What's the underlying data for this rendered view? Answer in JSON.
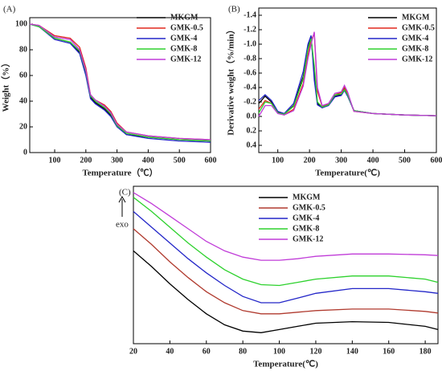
{
  "chart_data": [
    {
      "type": "line",
      "title": "(A)",
      "x_label": "Temperature（℃）",
      "y_label": "Weight（%）",
      "x": [
        20,
        50,
        100,
        150,
        180,
        200,
        215,
        230,
        260,
        280,
        300,
        330,
        400,
        500,
        600
      ],
      "series": [
        {
          "name": "MKGM",
          "color": "#000000",
          "values": [
            100,
            98,
            89,
            86,
            78,
            62,
            43,
            39,
            34,
            29,
            21,
            14,
            12,
            10,
            9
          ]
        },
        {
          "name": "GMK-0.5",
          "color": "#e0291e",
          "values": [
            100,
            99,
            91,
            89,
            82,
            66,
            45,
            41,
            37,
            32,
            23,
            16,
            13,
            11,
            10
          ]
        },
        {
          "name": "GMK-4",
          "color": "#2326c8",
          "values": [
            100,
            98,
            88,
            85,
            77,
            60,
            42,
            38,
            33,
            28,
            20,
            14,
            11,
            9,
            8
          ]
        },
        {
          "name": "GMK-8",
          "color": "#2dd12d",
          "values": [
            100,
            98,
            89,
            86,
            79,
            63,
            44,
            40,
            35,
            30,
            21,
            15,
            12,
            10,
            9
          ]
        },
        {
          "name": "GMK-12",
          "color": "#c03cd8",
          "values": [
            100,
            99,
            90,
            88,
            80,
            64,
            45,
            41,
            36,
            31,
            22,
            16,
            13,
            11,
            10
          ]
        }
      ],
      "xlim": [
        20,
        600
      ],
      "xticks": [
        100,
        200,
        300,
        400,
        500,
        600
      ],
      "ylim": [
        0,
        105
      ],
      "yticks": [
        0,
        20,
        40,
        60,
        80,
        100
      ],
      "legend": "upper right"
    },
    {
      "type": "line",
      "title": "(B)",
      "x_label": "Temperature(℃)",
      "y_label": "Derivative weight（%/min）",
      "x": [
        40,
        60,
        80,
        100,
        120,
        150,
        180,
        195,
        205,
        215,
        225,
        240,
        260,
        280,
        300,
        310,
        320,
        340,
        400,
        500,
        600
      ],
      "series": [
        {
          "name": "MKGM",
          "color": "#000000",
          "values": [
            -0.18,
            -0.28,
            -0.2,
            -0.06,
            -0.03,
            -0.15,
            -0.55,
            -0.95,
            -1.1,
            -0.6,
            -0.18,
            -0.12,
            -0.16,
            -0.28,
            -0.3,
            -0.38,
            -0.3,
            -0.08,
            -0.04,
            -0.02,
            -0.01
          ]
        },
        {
          "name": "GMK-0.5",
          "color": "#e0291e",
          "values": [
            -0.1,
            -0.22,
            -0.18,
            -0.05,
            -0.02,
            -0.1,
            -0.45,
            -0.85,
            -1.05,
            -1.15,
            -0.35,
            -0.14,
            -0.17,
            -0.3,
            -0.33,
            -0.4,
            -0.32,
            -0.07,
            -0.04,
            -0.02,
            -0.01
          ]
        },
        {
          "name": "GMK-4",
          "color": "#2326c8",
          "values": [
            -0.22,
            -0.3,
            -0.22,
            -0.07,
            -0.04,
            -0.18,
            -0.62,
            -1.0,
            -1.12,
            -0.5,
            -0.16,
            -0.12,
            -0.15,
            -0.27,
            -0.29,
            -0.36,
            -0.28,
            -0.08,
            -0.04,
            -0.02,
            -0.01
          ]
        },
        {
          "name": "GMK-8",
          "color": "#2dd12d",
          "values": [
            -0.05,
            -0.2,
            -0.18,
            -0.05,
            -0.03,
            -0.14,
            -0.52,
            -0.93,
            -1.08,
            -0.7,
            -0.2,
            -0.13,
            -0.16,
            -0.3,
            -0.31,
            -0.37,
            -0.3,
            -0.08,
            -0.04,
            -0.02,
            -0.01
          ]
        },
        {
          "name": "GMK-12",
          "color": "#c03cd8",
          "values": [
            0.0,
            -0.15,
            -0.15,
            -0.04,
            -0.02,
            -0.08,
            -0.42,
            -0.8,
            -1.0,
            -1.17,
            -0.4,
            -0.15,
            -0.18,
            -0.32,
            -0.34,
            -0.43,
            -0.34,
            -0.07,
            -0.04,
            -0.02,
            -0.01
          ]
        }
      ],
      "xlim": [
        40,
        600
      ],
      "xticks": [
        100,
        200,
        300,
        400,
        500,
        600
      ],
      "ylim": [
        0.5,
        -1.5
      ],
      "yticks": [
        -1.4,
        -1.2,
        {
          "value": -1,
          "label": "-1.0"
        },
        -0.8,
        -0.6,
        -0.4,
        -0.2,
        {
          "value": 0,
          "label": "0.0"
        },
        0.2,
        0.4
      ],
      "legend": "upper right"
    },
    {
      "type": "line",
      "title": "(C)",
      "x_label": "Temperature(℃)",
      "y_label": "exo",
      "x": [
        20,
        30,
        40,
        50,
        60,
        70,
        80,
        90,
        100,
        110,
        120,
        140,
        160,
        180,
        187
      ],
      "series": [
        {
          "name": "MKGM",
          "color": "#000000",
          "values": [
            5.9,
            4.9,
            3.8,
            2.8,
            1.9,
            1.2,
            0.8,
            0.7,
            0.9,
            1.1,
            1.3,
            1.4,
            1.35,
            1.1,
            0.9
          ]
        },
        {
          "name": "GMK-0.5",
          "color": "#b03a2e",
          "values": [
            7.3,
            6.3,
            5.2,
            4.2,
            3.3,
            2.6,
            2.1,
            1.9,
            1.9,
            2.0,
            2.1,
            2.2,
            2.2,
            2.05,
            1.95
          ]
        },
        {
          "name": "GMK-4",
          "color": "#2326c8",
          "values": [
            8.4,
            7.4,
            6.4,
            5.4,
            4.5,
            3.7,
            3.0,
            2.6,
            2.6,
            2.9,
            3.2,
            3.5,
            3.5,
            3.3,
            3.2
          ]
        },
        {
          "name": "GMK-8",
          "color": "#2dd12d",
          "values": [
            9.3,
            8.4,
            7.4,
            6.4,
            5.5,
            4.7,
            4.1,
            3.75,
            3.7,
            3.9,
            4.1,
            4.3,
            4.3,
            4.1,
            3.9
          ]
        },
        {
          "name": "GMK-12",
          "color": "#c03cd8",
          "values": [
            9.6,
            8.9,
            8.1,
            7.3,
            6.5,
            5.9,
            5.5,
            5.3,
            5.3,
            5.4,
            5.55,
            5.7,
            5.7,
            5.65,
            5.6
          ]
        }
      ],
      "xlim": [
        20,
        187
      ],
      "xticks": [
        20,
        40,
        60,
        80,
        100,
        120,
        140,
        160,
        180
      ],
      "ylim": [
        0,
        10
      ],
      "legend": "upper right"
    }
  ]
}
